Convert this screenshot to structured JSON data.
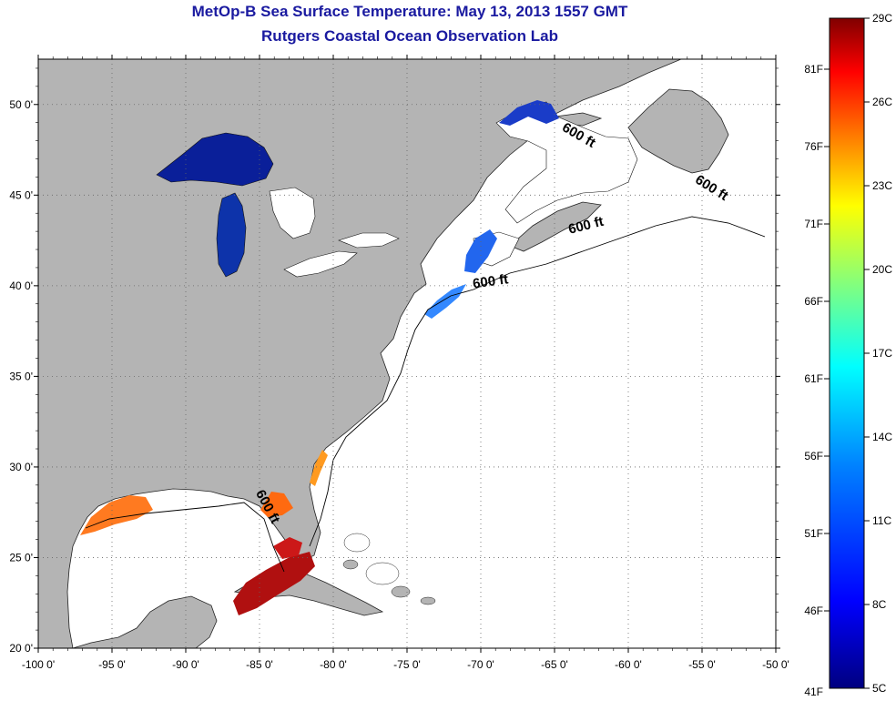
{
  "header": {
    "title_line1": "MetOp-B Sea Surface Temperature:  May 13, 2013 1557 GMT",
    "title_line2": "Rutgers Coastal Ocean Observation Lab"
  },
  "map": {
    "lon_range": [
      -100,
      -50
    ],
    "lat_range": [
      20,
      52.5
    ],
    "lon_ticks": [
      "-100 0'",
      "-95 0'",
      "-90 0'",
      "-85 0'",
      "-80 0'",
      "-75 0'",
      "-70 0'",
      "-65 0'",
      "-60 0'",
      "-55 0'",
      "-50 0'"
    ],
    "lat_ticks": [
      "20 0'",
      "25 0'",
      "30 0'",
      "35 0'",
      "40 0'",
      "45 0'",
      "50 0'"
    ],
    "grid": "dotted",
    "land_color": "#b4b4b4",
    "ocean_color": "#ffffff",
    "contour_label": "600 ft",
    "contour_labels": [
      {
        "text": "600 ft",
        "lon": -63.5,
        "lat": 48.1
      },
      {
        "text": "600 ft",
        "lon": -54.5,
        "lat": 45.2
      },
      {
        "text": "600 ft",
        "lon": -62.8,
        "lat": 43.1
      },
      {
        "text": "600 ft",
        "lon": -69.3,
        "lat": 40.0
      },
      {
        "text": "600 ft",
        "lon": -84.7,
        "lat": 27.7
      }
    ]
  },
  "colorbar": {
    "celsius_labels": [
      "29C",
      "26C",
      "23C",
      "20C",
      "17C",
      "14C",
      "11C",
      "8C",
      "5C"
    ],
    "fahrenheit_labels": [
      "81F",
      "76F",
      "71F",
      "66F",
      "61F",
      "56F",
      "51F",
      "46F",
      "41F"
    ],
    "colors": [
      "#800000",
      "#ff0000",
      "#ff8000",
      "#ffff00",
      "#80ff80",
      "#00ffff",
      "#0080ff",
      "#0000ff",
      "#000080"
    ]
  }
}
